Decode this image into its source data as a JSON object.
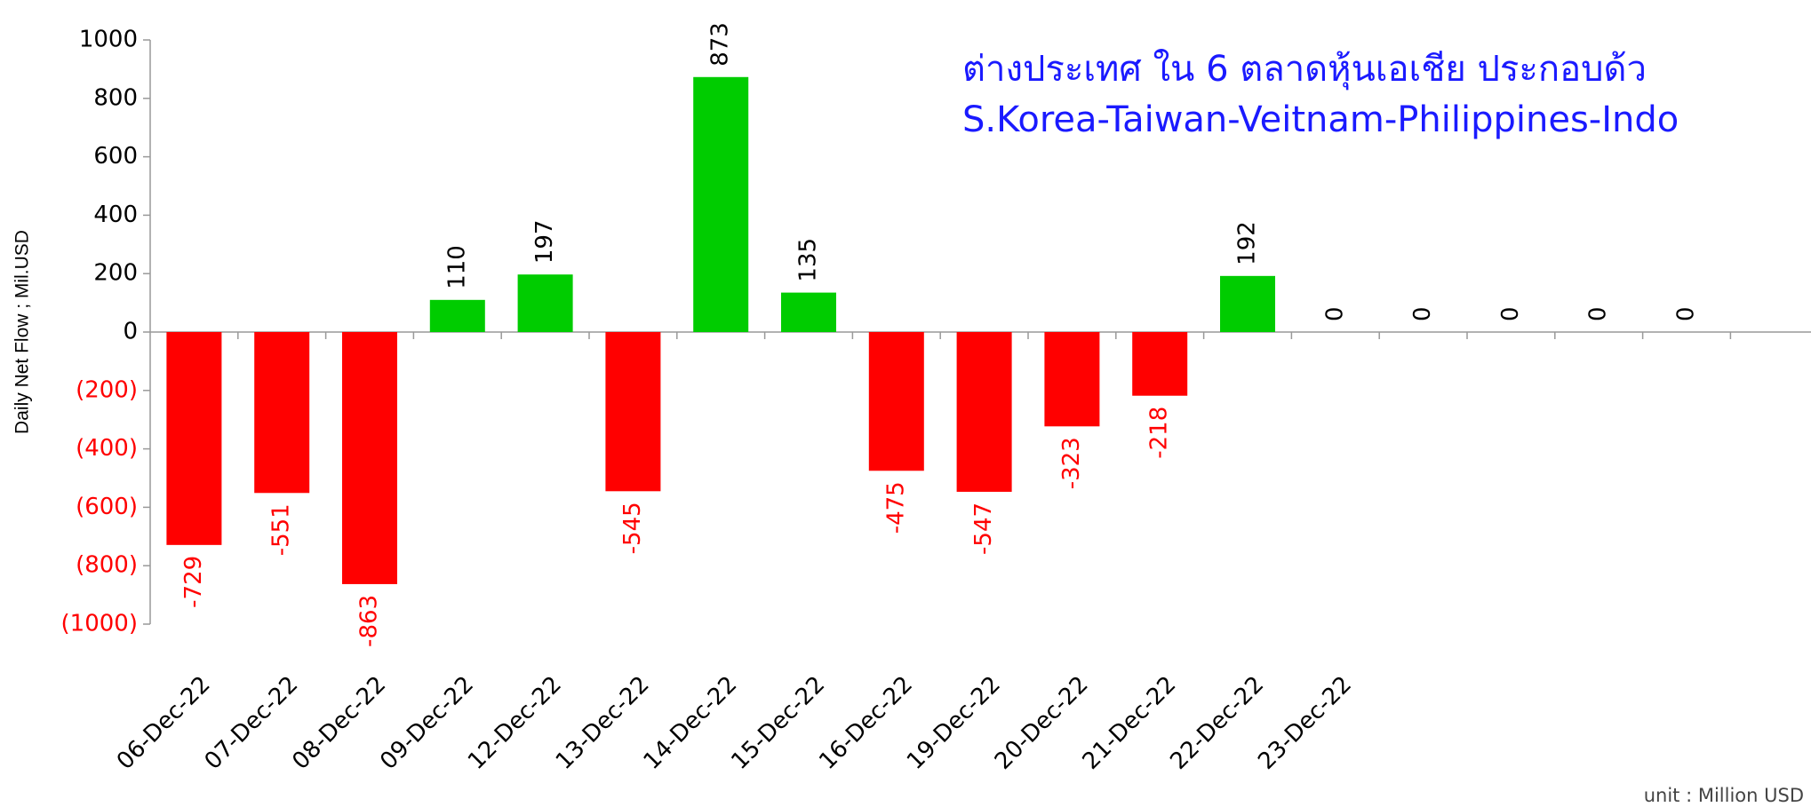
{
  "chart_data": {
    "type": "bar",
    "title_lines": [
      "ต่างประเทศ ใน 6 ตลาดหุ้นเอเชีย ประกอบด้ว",
      "S.Korea-Taiwan-Veitnam-Philippines-Indo"
    ],
    "ylabel": "Daily Net Flow ; Mil.USD",
    "note": "unit : Million USD",
    "categories": [
      "06-Dec-22",
      "07-Dec-22",
      "08-Dec-22",
      "09-Dec-22",
      "12-Dec-22",
      "13-Dec-22",
      "14-Dec-22",
      "15-Dec-22",
      "16-Dec-22",
      "19-Dec-22",
      "20-Dec-22",
      "21-Dec-22",
      "22-Dec-22",
      "23-Dec-22",
      null,
      null,
      null,
      null
    ],
    "values": [
      -729,
      -551,
      -863,
      110,
      197,
      -545,
      873,
      135,
      -475,
      -547,
      -323,
      -218,
      192,
      0,
      0,
      0,
      0,
      0
    ],
    "positive_color": "#00cc00",
    "negative_color": "#ff0000",
    "ylim": [
      -1000,
      1000
    ],
    "yticks": [
      {
        "value": -1000,
        "label": "(1000)"
      },
      {
        "value": -800,
        "label": "(800)"
      },
      {
        "value": -600,
        "label": "(600)"
      },
      {
        "value": -400,
        "label": "(400)"
      },
      {
        "value": -200,
        "label": "(200)"
      },
      0,
      200,
      400,
      600,
      800,
      1000
    ],
    "grid": false
  }
}
